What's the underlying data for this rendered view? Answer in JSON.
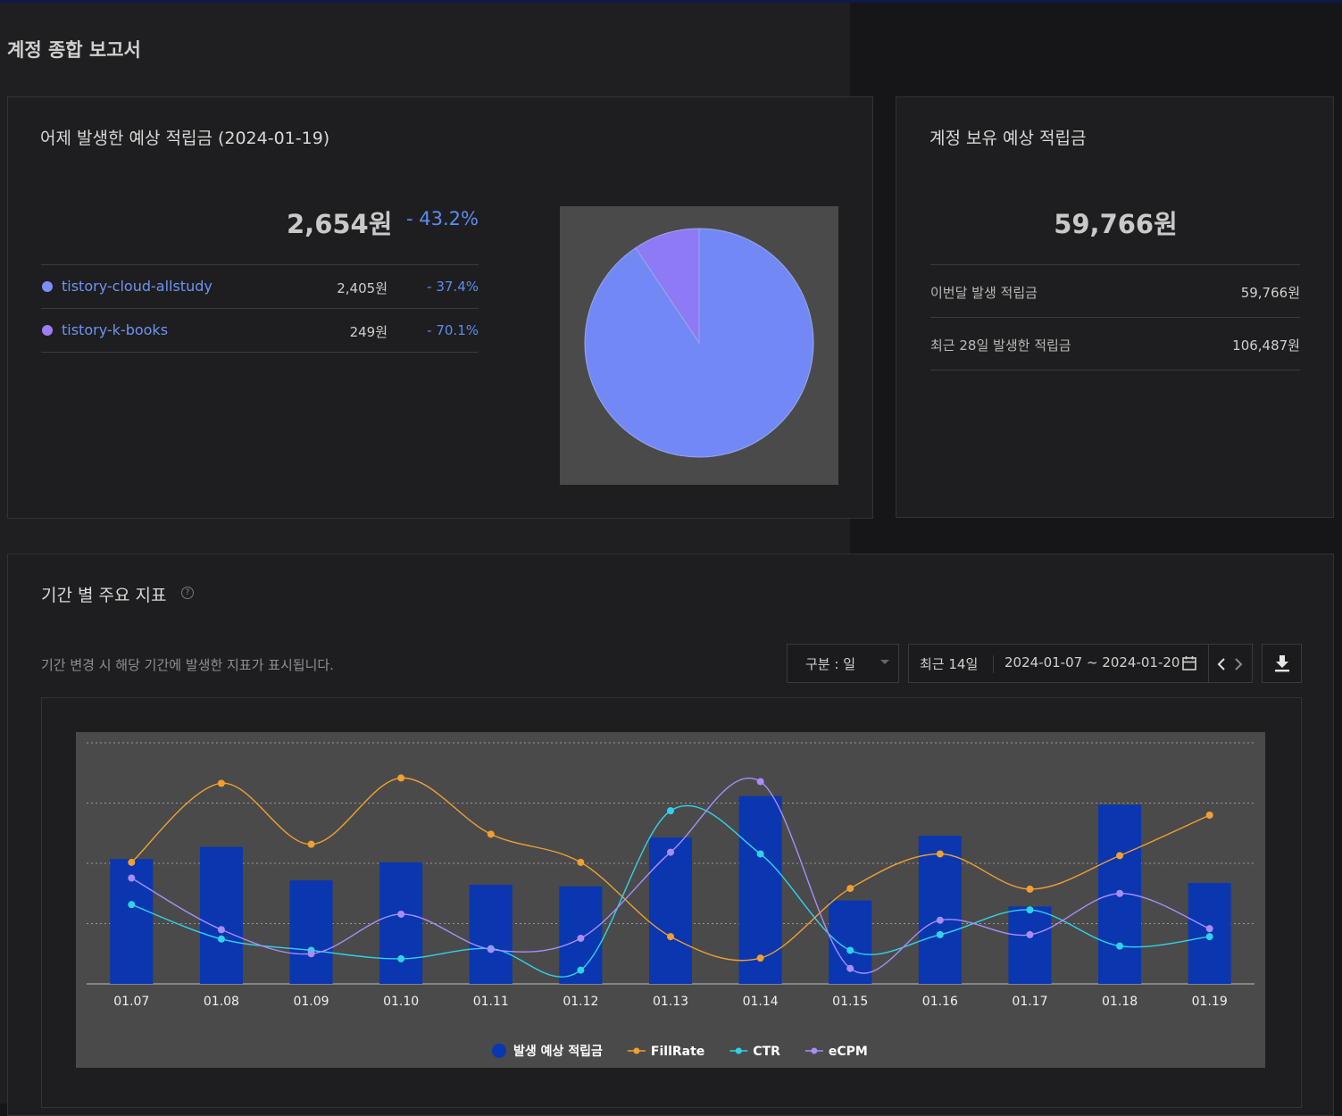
{
  "page": {
    "title": "계정 종합 보고서"
  },
  "yesterday_card": {
    "title": "어제 발생한 예상 적립금 (2024-01-19)",
    "amount": "2,654원",
    "change": "- 43.2%",
    "sites": [
      {
        "name": "tistory-cloud-allstudy",
        "amount": "2,405원",
        "change": "- 37.4%",
        "color": "#7b8ff7"
      },
      {
        "name": "tistory-k-books",
        "amount": "249원",
        "change": "- 70.1%",
        "color": "#9b7ef5"
      }
    ]
  },
  "pie_data": {
    "type": "pie",
    "slices": [
      {
        "label": "tistory-cloud-allstudy",
        "value": 2405,
        "color": "#7289f5"
      },
      {
        "label": "tistory-k-books",
        "value": 249,
        "color": "#8f7af5"
      }
    ]
  },
  "balance_card": {
    "title": "계정 보유 예상 적립금",
    "amount": "59,766원",
    "rows": [
      {
        "label": "이번달 발생 적립금",
        "value": "59,766원"
      },
      {
        "label": "최근 28일 발생한 적립금",
        "value": "106,487원"
      }
    ]
  },
  "period_section": {
    "title": "기간 별 주요 지표",
    "help_icon": "help-circle-icon",
    "description": "기간 변경 시 해당 기간에 발생한 지표가 표시됩니다.",
    "granularity_select": "구분 : 일",
    "range_label": "최근 14일",
    "date_range": "2024-01-07 ~ 2024-01-20",
    "calendar_icon": "calendar-icon",
    "prev_icon": "chevron-left-icon",
    "next_icon": "chevron-right-icon",
    "download_icon": "download-icon"
  },
  "chart_data": {
    "type": "bar",
    "categories": [
      "01.07",
      "01.08",
      "01.09",
      "01.10",
      "01.11",
      "01.12",
      "01.13",
      "01.14",
      "01.15",
      "01.16",
      "01.17",
      "01.18",
      "01.19"
    ],
    "ylim": [
      0,
      100
    ],
    "grid": true,
    "legend": "bottom-center",
    "series": [
      {
        "name": "발생 예상 적립금",
        "kind": "bar",
        "color": "#0a36b0",
        "values": [
          51.8,
          56.8,
          42.9,
          50.4,
          41.1,
          40.4,
          60.7,
          77.9,
          34.6,
          61.4,
          32.1,
          74.3,
          41.8
        ]
      },
      {
        "name": "FillRate",
        "kind": "line",
        "color": "#f0a030",
        "values": [
          50.4,
          83.2,
          57.9,
          85.4,
          62.1,
          50.4,
          19.6,
          10.7,
          39.6,
          53.9,
          39.3,
          53.2,
          70.0
        ]
      },
      {
        "name": "CTR",
        "kind": "line",
        "color": "#2fd3e8",
        "values": [
          32.9,
          18.6,
          13.9,
          10.4,
          14.6,
          5.7,
          71.8,
          53.9,
          13.9,
          20.4,
          30.7,
          15.7,
          19.6
        ]
      },
      {
        "name": "eCPM",
        "kind": "line",
        "color": "#a98cf8",
        "values": [
          43.9,
          22.5,
          12.5,
          28.9,
          14.3,
          18.9,
          54.6,
          83.9,
          6.4,
          26.4,
          20.4,
          37.5,
          22.9
        ]
      }
    ]
  }
}
